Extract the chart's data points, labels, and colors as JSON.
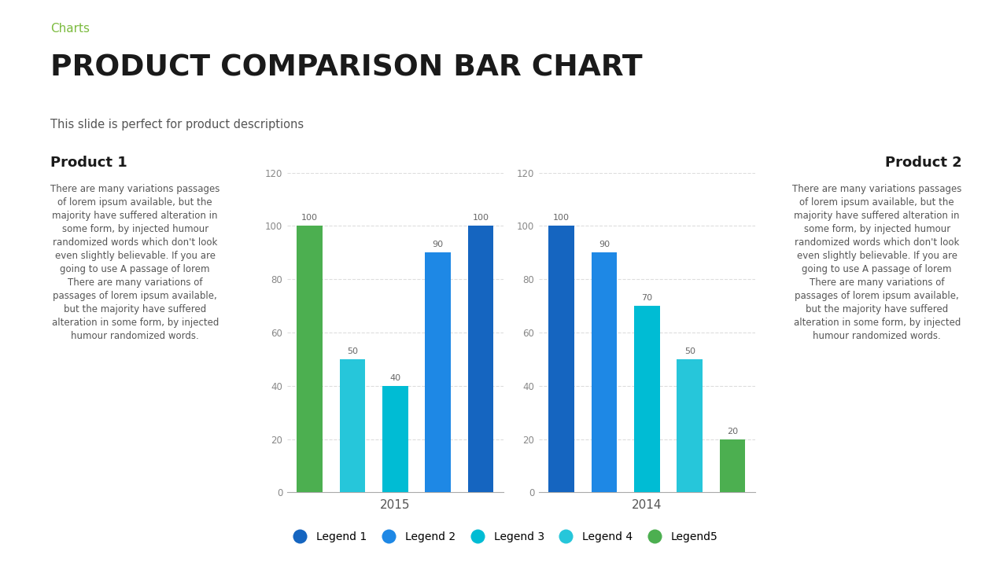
{
  "title": "PRODUCT COMPARISON BAR CHART",
  "subtitle_label": "Charts",
  "subtitle": "This slide is perfect for product descriptions",
  "product1_title": "Product 1",
  "product2_title": "Product 2",
  "product1_text": "There are many variations passages\nof lorem ipsum available, but the\nmajority have suffered alteration in\nsome form, by injected humour\nrandomized words which don't look\neven slightly believable. If you are\ngoing to use A passage of lorem\nThere are many variations of\npassages of lorem ipsum available,\nbut the majority have suffered\nalteration in some form, by injected\nhumour randomized words.",
  "product2_text": "There are many variations passages\nof lorem ipsum available, but the\nmajority have suffered alteration in\nsome form, by injected humour\nrandomized words which don't look\neven slightly believable. If you are\ngoing to use A passage of lorem\nThere are many variations of\npassages of lorem ipsum available,\nbut the majority have suffered\nalteration in some form, by injected\nhumour randomized words.",
  "chart1_label": "2015",
  "chart2_label": "2014",
  "chart1_values": [
    100,
    50,
    40,
    90,
    100
  ],
  "chart2_values": [
    100,
    90,
    70,
    50,
    20
  ],
  "bar_colors": [
    "#4CAF50",
    "#26C6DA",
    "#00BCD4",
    "#1E88E5",
    "#1565C0"
  ],
  "bar_colors_chart2": [
    "#1565C0",
    "#1E88E5",
    "#00BCD4",
    "#26C6DA",
    "#4CAF50"
  ],
  "ylim": [
    0,
    120
  ],
  "yticks": [
    0,
    20,
    40,
    60,
    80,
    100,
    120
  ],
  "legend_labels": [
    "Legend 1",
    "Legend 2",
    "Legend 3",
    "Legend 4",
    "Legend5"
  ],
  "legend_colors": [
    "#1565C0",
    "#1E88E5",
    "#00BCD4",
    "#26C6DA",
    "#4CAF50"
  ],
  "bg_color": "#ffffff",
  "title_color": "#1a1a1a",
  "subtitle_label_color": "#7CBB3F",
  "subtitle_color": "#555555",
  "grid_color": "#dddddd",
  "bar_width": 0.6,
  "value_fontsize": 8,
  "axis_fontsize": 8.5
}
